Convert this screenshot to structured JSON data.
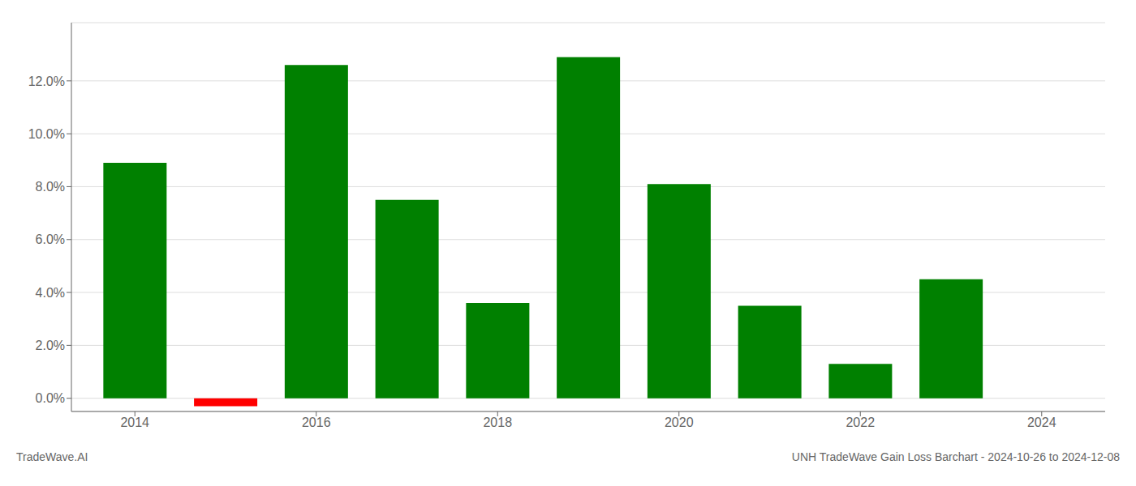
{
  "chart_data": {
    "type": "bar",
    "x": [
      2014,
      2015,
      2016,
      2017,
      2018,
      2019,
      2020,
      2021,
      2022,
      2023,
      2024
    ],
    "values": [
      0.089,
      -0.003,
      0.126,
      0.075,
      0.036,
      0.129,
      0.081,
      0.035,
      0.013,
      0.045,
      null
    ],
    "colors": [
      "#008000",
      "#ff0000",
      "#008000",
      "#008000",
      "#008000",
      "#008000",
      "#008000",
      "#008000",
      "#008000",
      "#008000",
      "#008000"
    ],
    "xlim": [
      2013.3,
      2024.7
    ],
    "xticks": [
      2014,
      2016,
      2018,
      2020,
      2022,
      2024
    ],
    "ylim": [
      -0.005,
      0.142
    ],
    "yticks": [
      {
        "value": 0.0,
        "label": "0.0%"
      },
      {
        "value": 0.02,
        "label": "2.0%"
      },
      {
        "value": 0.04,
        "label": "4.0%"
      },
      {
        "value": 0.06,
        "label": "6.0%"
      },
      {
        "value": 0.08,
        "label": "8.0%"
      },
      {
        "value": 0.1,
        "label": "10.0%"
      },
      {
        "value": 0.12,
        "label": "12.0%"
      }
    ],
    "grid": true,
    "annotations": [
      "TradeWave.AI",
      "UNH TradeWave Gain Loss Barchart - 2024-10-26 to 2024-12-08"
    ]
  }
}
